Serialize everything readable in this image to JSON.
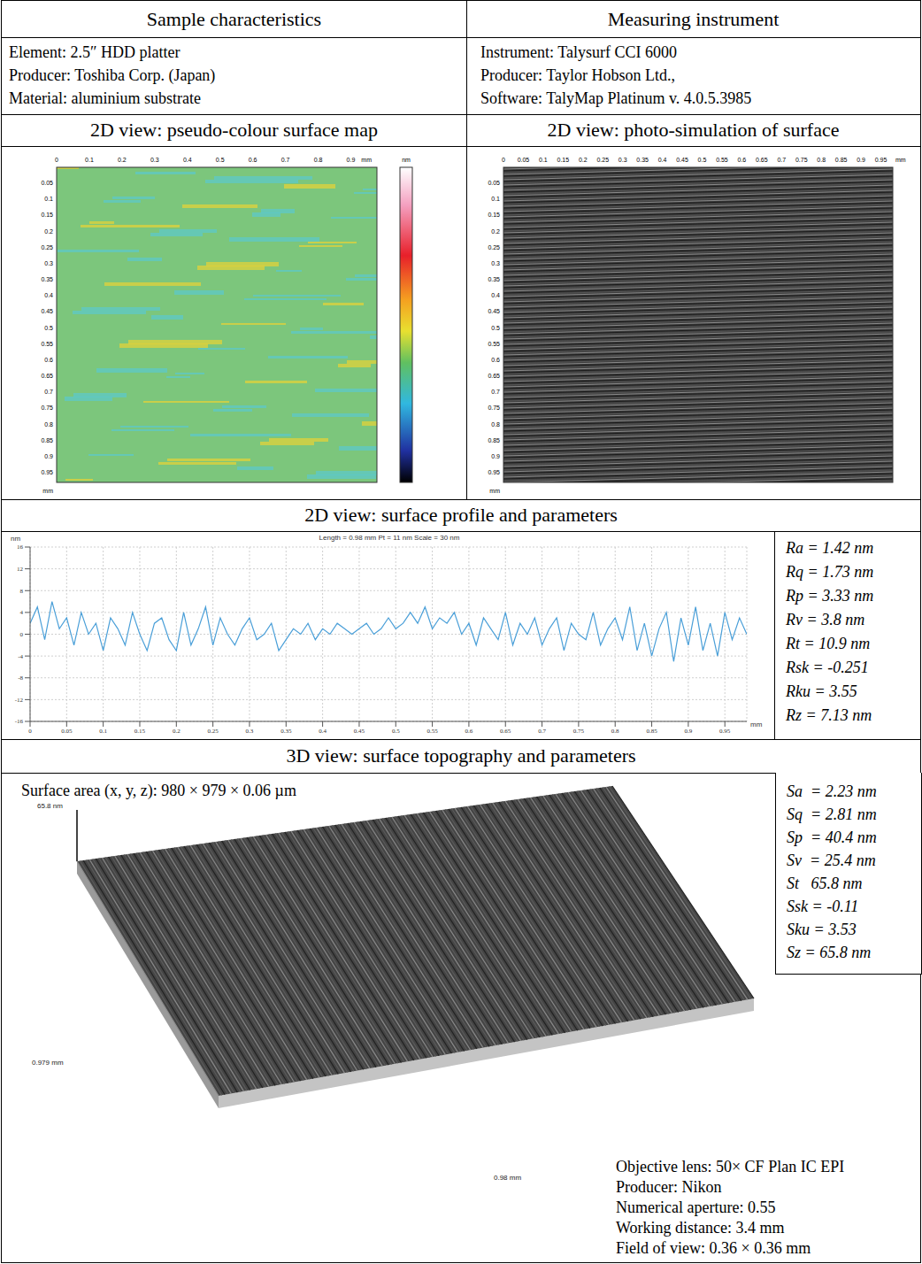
{
  "header": {
    "left": "Sample characteristics",
    "right": "Measuring instrument"
  },
  "sample": [
    "Element: 2.5″ HDD platter",
    "Producer: Toshiba Corp. (Japan)",
    "Material: aluminium substrate"
  ],
  "instrument": [
    "Instrument: Talysurf CCI 6000",
    "Producer: Taylor Hobson Ltd.,",
    "Software: TalyMap Platinum v. 4.0.5.3985"
  ],
  "panels": {
    "map": "2D view: pseudo-colour surface map",
    "photo": "2D view: photo-simulation of surface",
    "profile": "2D view: surface profile and parameters",
    "topo": "3D view: surface topography and parameters"
  },
  "map": {
    "xlim": [
      0,
      0.98
    ],
    "ylim": [
      0,
      0.98
    ],
    "xticks": [
      0,
      0.1,
      0.2,
      0.3,
      0.4,
      0.5,
      0.6,
      0.7,
      0.8,
      0.9
    ],
    "yticks": [
      0.05,
      0.1,
      0.15,
      0.2,
      0.25,
      0.3,
      0.35,
      0.4,
      0.45,
      0.5,
      0.55,
      0.6,
      0.65,
      0.7,
      0.75,
      0.8,
      0.85,
      0.9,
      0.95
    ],
    "unit": "mm",
    "colorbar_unit": "nm"
  },
  "photo": {
    "xlim": [
      0,
      0.98
    ],
    "ylim": [
      0,
      0.98
    ],
    "xticks": [
      0,
      0.05,
      0.1,
      0.15,
      0.2,
      0.25,
      0.3,
      0.35,
      0.4,
      0.45,
      0.5,
      0.55,
      0.6,
      0.65,
      0.7,
      0.75,
      0.8,
      0.85,
      0.9,
      0.95
    ],
    "yticks": [
      0.05,
      0.1,
      0.15,
      0.2,
      0.25,
      0.3,
      0.35,
      0.4,
      0.45,
      0.5,
      0.55,
      0.6,
      0.65,
      0.7,
      0.75,
      0.8,
      0.85,
      0.9,
      0.95
    ],
    "unit": "mm"
  },
  "chart_data": {
    "type": "line",
    "title": "Length = 0.98 mm  Pt = 11 nm  Scale = 30 nm",
    "xlabel": "mm",
    "ylabel": "nm",
    "x": [
      0,
      0.01,
      0.02,
      0.03,
      0.04,
      0.05,
      0.06,
      0.07,
      0.08,
      0.09,
      0.1,
      0.11,
      0.12,
      0.13,
      0.14,
      0.15,
      0.16,
      0.17,
      0.18,
      0.19,
      0.2,
      0.21,
      0.22,
      0.23,
      0.24,
      0.25,
      0.26,
      0.27,
      0.28,
      0.29,
      0.3,
      0.31,
      0.32,
      0.33,
      0.34,
      0.35,
      0.36,
      0.37,
      0.38,
      0.39,
      0.4,
      0.41,
      0.42,
      0.43,
      0.44,
      0.45,
      0.46,
      0.47,
      0.48,
      0.49,
      0.5,
      0.51,
      0.52,
      0.53,
      0.54,
      0.55,
      0.56,
      0.57,
      0.58,
      0.59,
      0.6,
      0.61,
      0.62,
      0.63,
      0.64,
      0.65,
      0.66,
      0.67,
      0.68,
      0.69,
      0.7,
      0.71,
      0.72,
      0.73,
      0.74,
      0.75,
      0.76,
      0.77,
      0.78,
      0.79,
      0.8,
      0.81,
      0.82,
      0.83,
      0.84,
      0.85,
      0.86,
      0.87,
      0.88,
      0.89,
      0.9,
      0.91,
      0.92,
      0.93,
      0.94,
      0.95,
      0.96,
      0.97,
      0.98
    ],
    "values": [
      2,
      5,
      -1,
      6,
      1,
      3,
      -2,
      4,
      0,
      2,
      -3,
      3,
      1,
      -2,
      4,
      0,
      -3,
      2,
      3,
      -1,
      -3,
      4,
      -2,
      1,
      5,
      -2,
      3,
      0,
      -2,
      1,
      3,
      -1,
      0,
      2,
      -3,
      -1,
      1,
      0,
      2,
      -1,
      1,
      0,
      2,
      1,
      0,
      1,
      2,
      0,
      1,
      3,
      1,
      2,
      4,
      2,
      5,
      1,
      3,
      2,
      4,
      0,
      2,
      -2,
      3,
      1,
      -1,
      4,
      -2,
      2,
      0,
      3,
      -2,
      1,
      3,
      -3,
      2,
      0,
      -1,
      4,
      -2,
      1,
      3,
      -1,
      5,
      -3,
      2,
      -4,
      1,
      4,
      -5,
      3,
      -2,
      5,
      -3,
      2,
      -4,
      4,
      -1,
      3,
      0
    ],
    "color": "#4a9fd8",
    "xlim": [
      0,
      0.98
    ],
    "ylim": [
      -16,
      16
    ],
    "xticks": [
      0,
      0.05,
      0.1,
      0.15,
      0.2,
      0.25,
      0.3,
      0.35,
      0.4,
      0.45,
      0.5,
      0.55,
      0.6,
      0.65,
      0.7,
      0.75,
      0.8,
      0.85,
      0.9,
      0.95
    ],
    "yticks": [
      -16,
      -12,
      -8,
      -4,
      0,
      4,
      8,
      12,
      16
    ],
    "grid": true
  },
  "profile_parameters": [
    "Ra = 1.42 nm",
    "Rq = 1.73 nm",
    "Rp = 3.33 nm",
    "Rv = 3.8 nm",
    "Rt = 10.9 nm",
    "Rsk = -0.251",
    "Rku = 3.55",
    "Rz = 7.13 nm"
  ],
  "topography": {
    "surface_area": "Surface area (x, y, z): 980 × 979 × 0.06 µm",
    "z_label": "65.8 nm",
    "y_label": "0.979 mm",
    "x_label": "0.98 mm",
    "parameters": [
      "Sa  = 2.23 nm",
      "Sq  = 2.81 nm",
      "Sp  = 40.4 nm",
      "Sv  = 25.4 nm",
      "St   65.8 nm",
      "Ssk = -0.11",
      "Sku = 3.53",
      "Sz = 65.8 nm"
    ],
    "lens": [
      "Objective lens: 50× CF Plan IC EPI",
      "Producer: Nikon",
      "Numerical aperture: 0.55",
      "Working distance: 3.4 mm",
      "Field of view: 0.36 × 0.36 mm"
    ]
  }
}
